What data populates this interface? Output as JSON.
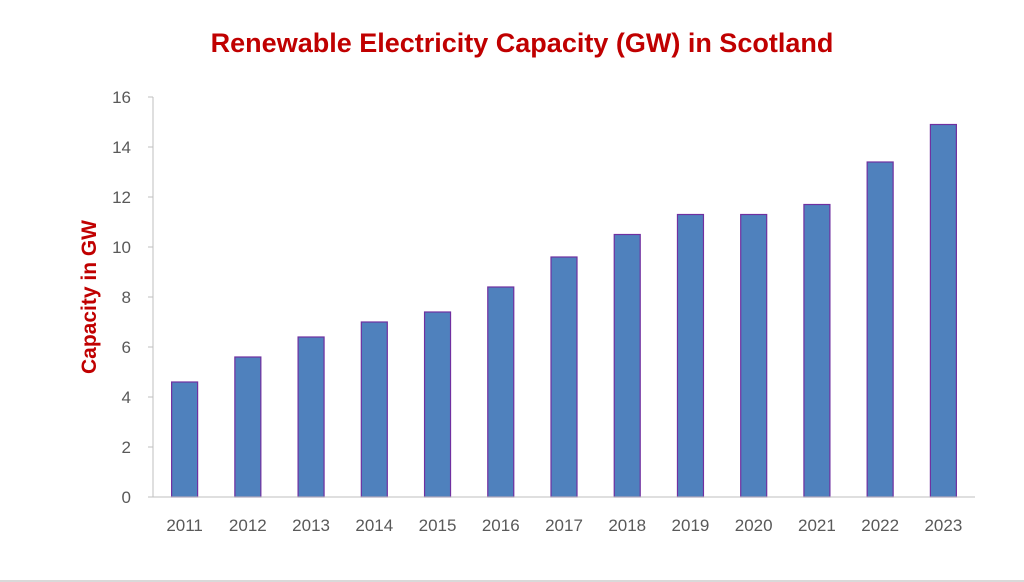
{
  "chart_data": {
    "type": "bar",
    "title": "Renewable Electricity Capacity (GW) in Scotland",
    "xlabel": "",
    "ylabel": "Capacity in GW",
    "categories": [
      "2011",
      "2012",
      "2013",
      "2014",
      "2015",
      "2016",
      "2017",
      "2018",
      "2019",
      "2020",
      "2021",
      "2022",
      "2023"
    ],
    "values": [
      4.6,
      5.6,
      6.4,
      7.0,
      7.4,
      8.4,
      9.6,
      10.5,
      11.3,
      11.3,
      11.7,
      13.4,
      14.9
    ],
    "ylim": [
      0,
      16
    ],
    "yticks": [
      0,
      2,
      4,
      6,
      8,
      10,
      12,
      14,
      16
    ],
    "grid": false,
    "legend": "none",
    "colors": {
      "bar_fill": "#4f81bd",
      "bar_stroke": "#7030a0",
      "title": "#c00000",
      "ylabel": "#c00000",
      "axis": "#bfbfbf",
      "tick_text": "#595959"
    }
  }
}
